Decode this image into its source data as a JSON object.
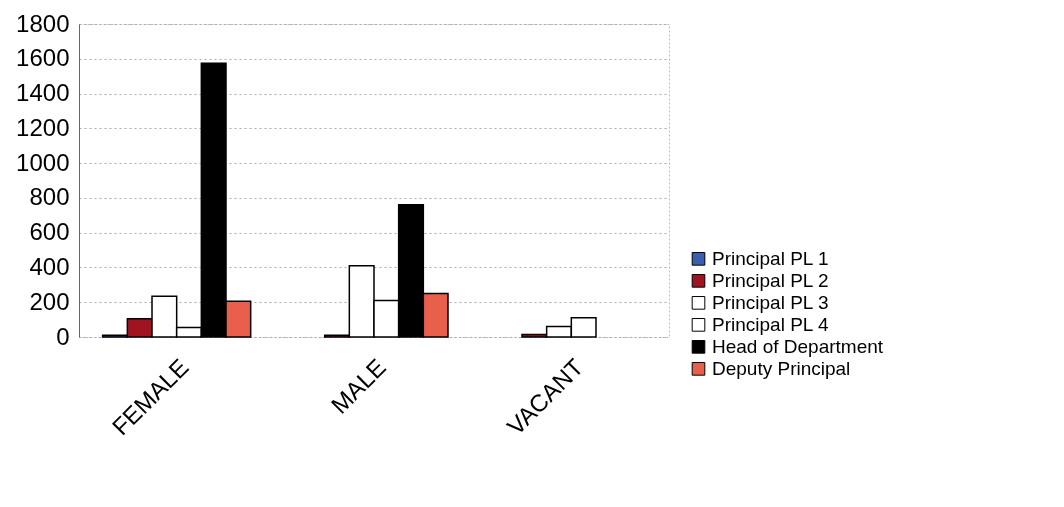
{
  "chart_data": {
    "type": "bar",
    "categories": [
      "FEMALE",
      "MALE",
      "VACANT"
    ],
    "series": [
      {
        "name": "Principal PL 1",
        "color": "#3a5fb0",
        "values": [
          10,
          null,
          null
        ]
      },
      {
        "name": "Principal PL 2",
        "color": "#a01422",
        "values": [
          105,
          10,
          15
        ]
      },
      {
        "name": "Principal PL 3",
        "color": "#ffffff",
        "values": [
          235,
          410,
          60
        ]
      },
      {
        "name": "Principal PL 4",
        "color": "#ffffff",
        "values": [
          55,
          210,
          110
        ]
      },
      {
        "name": "Head of Department",
        "color": "#000000",
        "values": [
          1575,
          760,
          null
        ]
      },
      {
        "name": "Deputy Principal",
        "color": "#e8604c",
        "values": [
          205,
          250,
          null
        ]
      }
    ],
    "ylim": [
      0,
      1800
    ],
    "yticks": [
      0,
      200,
      400,
      600,
      800,
      1000,
      1200,
      1400,
      1600,
      1800
    ],
    "grid": "y",
    "legend": "right"
  }
}
